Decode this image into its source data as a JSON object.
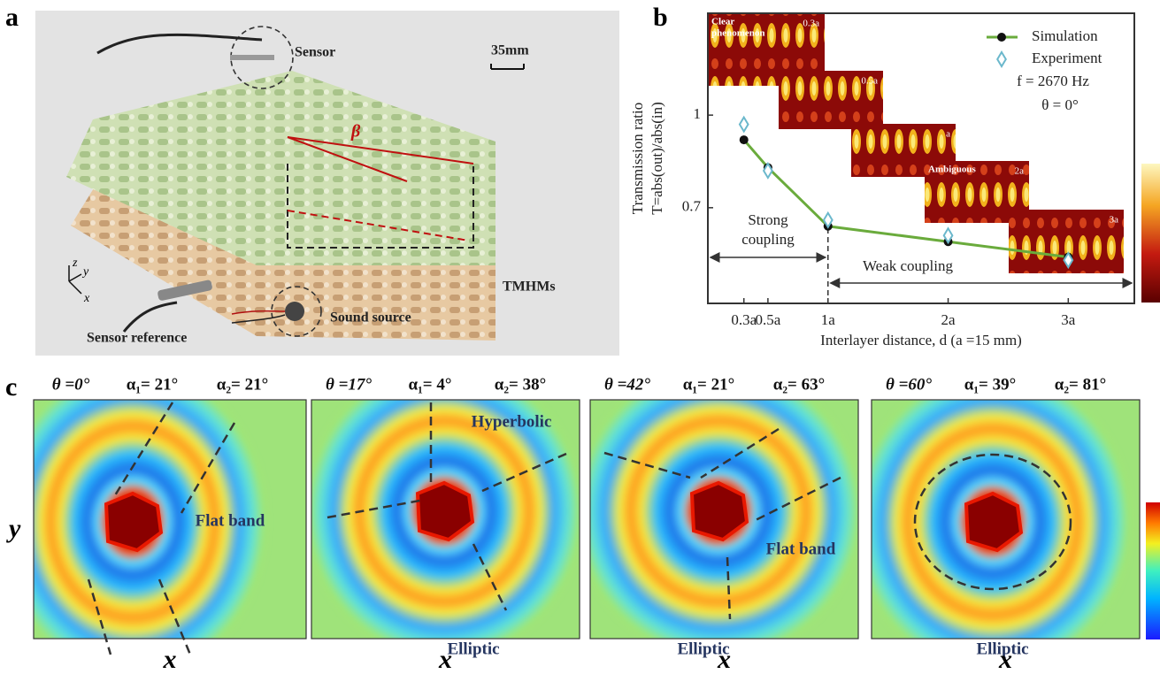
{
  "panel_a": {
    "label": "a",
    "sensor": "Sensor",
    "scale": "35mm",
    "angle": "β",
    "sample": "TMHMs",
    "sensor_reference": "Sensor reference",
    "sound_source": "Sound source",
    "axes": [
      "z",
      "y",
      "x"
    ]
  },
  "panel_b": {
    "label": "b"
  },
  "chart_data": {
    "type": "line",
    "y_label": [
      "Transmission ratio",
      "T=abs(out)/abs(in)"
    ],
    "x_label": "Interlayer distance, d (a =15 mm)",
    "xlim": [
      0,
      3.55
    ],
    "ylim": [
      0.39,
      1.33
    ],
    "xticks": [
      {
        "value": 0.3,
        "label": "0.3a"
      },
      {
        "value": 0.5,
        "label": "0.5a"
      },
      {
        "value": 1,
        "label": "1a"
      },
      {
        "value": 2,
        "label": "2a"
      },
      {
        "value": 3,
        "label": "3a"
      }
    ],
    "yticks": [
      0.7,
      1
    ],
    "x": [
      0.3,
      0.5,
      1,
      2,
      3
    ],
    "series": [
      {
        "name": "Simulation",
        "color": "#6aab3c",
        "marker_color": "#111111",
        "values": [
          0.92,
          0.83,
          0.64,
          0.59,
          0.54
        ]
      },
      {
        "name": "Experiment",
        "color": "#6bb8cc",
        "values": [
          0.97,
          0.82,
          0.66,
          0.61,
          0.53
        ]
      }
    ],
    "boundary": 1,
    "annotations": {
      "frequency": "f = 2670 Hz",
      "angle": "θ = 0°",
      "strong": [
        "Strong",
        "coupling"
      ],
      "weak": "Weak coupling"
    },
    "insets": [
      {
        "label": "0.3a",
        "note": [
          "Clear",
          "phenomenon"
        ]
      },
      {
        "label": "0.5a"
      },
      {
        "label": "a"
      },
      {
        "label": "2a",
        "note": [
          "Ambiguous"
        ]
      },
      {
        "label": "3a"
      }
    ]
  },
  "panel_c": {
    "label": "c",
    "x_label": "x",
    "y_label": "y",
    "maps": [
      {
        "theta": "θ =0°",
        "alpha1": "α₁= 21°",
        "alpha2": "α₂= 21°",
        "regions": [
          "Flat band"
        ]
      },
      {
        "theta": "θ =17°",
        "alpha1": "α₁= 4°",
        "alpha2": "α₂= 38°",
        "regions": [
          "Hyperbolic",
          "Elliptic"
        ]
      },
      {
        "theta": "θ =42°",
        "alpha1": "α₁= 21°",
        "alpha2": "α₂= 63°",
        "regions": [
          "Elliptic",
          "Flat band"
        ]
      },
      {
        "theta": "θ =60°",
        "alpha1": "α₁= 39°",
        "alpha2": "α₂= 81°",
        "regions": [
          "Elliptic"
        ]
      }
    ]
  }
}
